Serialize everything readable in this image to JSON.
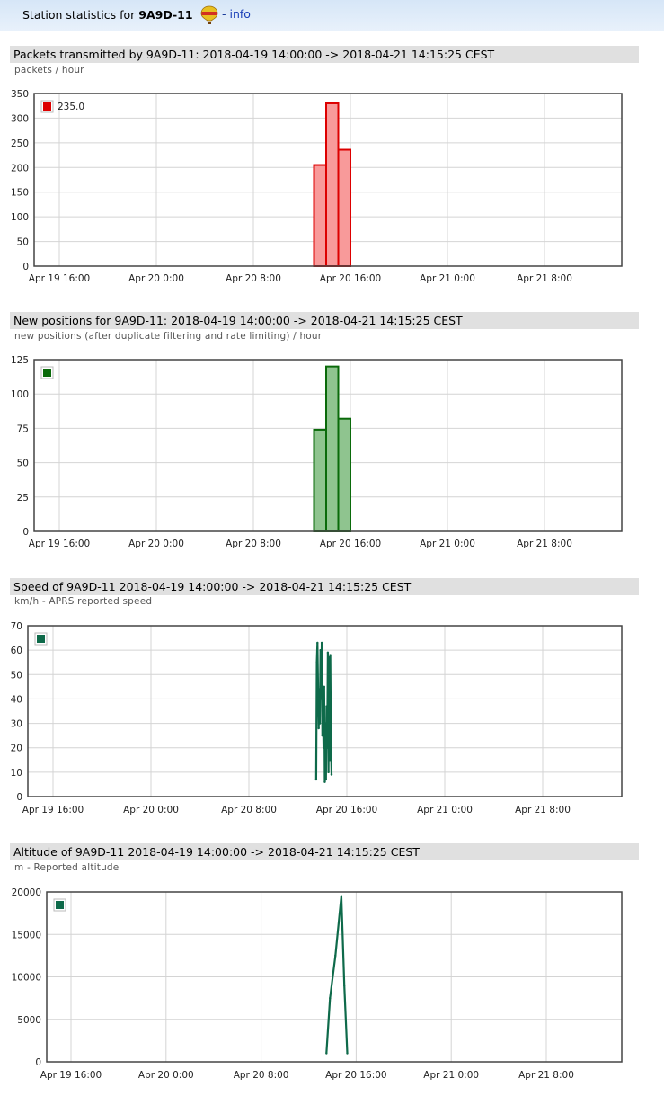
{
  "header": {
    "prefix": "Station statistics for",
    "callsign": "9A9D-11",
    "info_sep": "-",
    "info_label": "info"
  },
  "x_ticks": [
    "Apr 19 16:00",
    "Apr 20 0:00",
    "Apr 20 8:00",
    "Apr 20 16:00",
    "Apr 21 0:00",
    "Apr 21 8:00"
  ],
  "chart_data": [
    {
      "type": "bar",
      "title": "Packets transmitted by 9A9D-11: 2018-04-19 14:00:00 -> 2018-04-21 14:15:25 CEST",
      "ylabel": "packets / hour",
      "legend": "235.0",
      "legend_placement": "top-left",
      "color": "#dd0000",
      "fill": "#f89a9a",
      "x_range": [
        "2018-04-19 14:00",
        "2018-04-21 14:15"
      ],
      "y_ticks": [
        0,
        50,
        100,
        150,
        200,
        250,
        300,
        350
      ],
      "ylim": [
        0,
        350
      ],
      "grid": true,
      "bars": [
        {
          "x": "2018-04-20 13:00",
          "y": 205
        },
        {
          "x": "2018-04-20 14:00",
          "y": 330
        },
        {
          "x": "2018-04-20 15:00",
          "y": 236
        }
      ]
    },
    {
      "type": "bar",
      "title": "New positions for 9A9D-11: 2018-04-19 14:00:00 -> 2018-04-21 14:15:25 CEST",
      "ylabel": "new positions (after duplicate filtering and rate limiting) / hour",
      "legend": "",
      "legend_placement": "top-left",
      "color": "#0a6a0a",
      "fill": "#8fc48f",
      "x_range": [
        "2018-04-19 14:00",
        "2018-04-21 14:15"
      ],
      "y_ticks": [
        0,
        25,
        50,
        75,
        100,
        125
      ],
      "ylim": [
        0,
        125
      ],
      "grid": true,
      "bars": [
        {
          "x": "2018-04-20 13:00",
          "y": 74
        },
        {
          "x": "2018-04-20 14:00",
          "y": 120
        },
        {
          "x": "2018-04-20 15:00",
          "y": 82
        }
      ]
    },
    {
      "type": "line",
      "title": "Speed of 9A9D-11 2018-04-19 14:00:00 -> 2018-04-21 14:15:25 CEST",
      "ylabel": "km/h - APRS reported speed",
      "legend": "",
      "legend_placement": "top-left",
      "color": "#0e6a4a",
      "x_range": [
        "2018-04-19 14:00",
        "2018-04-21 14:15"
      ],
      "y_ticks": [
        0,
        10,
        20,
        30,
        40,
        50,
        60,
        70
      ],
      "ylim": [
        0,
        70
      ],
      "grid": true,
      "points": [
        {
          "x": "2018-04-20 13:30",
          "y": 7
        },
        {
          "x": "2018-04-20 13:33",
          "y": 55
        },
        {
          "x": "2018-04-20 13:36",
          "y": 63
        },
        {
          "x": "2018-04-20 13:39",
          "y": 45
        },
        {
          "x": "2018-04-20 13:42",
          "y": 28
        },
        {
          "x": "2018-04-20 13:45",
          "y": 44
        },
        {
          "x": "2018-04-20 13:48",
          "y": 30
        },
        {
          "x": "2018-04-20 13:51",
          "y": 60
        },
        {
          "x": "2018-04-20 13:54",
          "y": 40
        },
        {
          "x": "2018-04-20 13:57",
          "y": 63
        },
        {
          "x": "2018-04-20 14:00",
          "y": 25
        },
        {
          "x": "2018-04-20 14:03",
          "y": 35
        },
        {
          "x": "2018-04-20 14:06",
          "y": 20
        },
        {
          "x": "2018-04-20 14:09",
          "y": 45
        },
        {
          "x": "2018-04-20 14:12",
          "y": 6
        },
        {
          "x": "2018-04-20 14:15",
          "y": 30
        },
        {
          "x": "2018-04-20 14:18",
          "y": 7
        },
        {
          "x": "2018-04-20 14:21",
          "y": 37
        },
        {
          "x": "2018-04-20 14:24",
          "y": 20
        },
        {
          "x": "2018-04-20 14:27",
          "y": 59
        },
        {
          "x": "2018-04-20 14:30",
          "y": 10
        },
        {
          "x": "2018-04-20 14:33",
          "y": 57
        },
        {
          "x": "2018-04-20 14:36",
          "y": 15
        },
        {
          "x": "2018-04-20 14:39",
          "y": 58
        },
        {
          "x": "2018-04-20 14:42",
          "y": 22
        },
        {
          "x": "2018-04-20 14:45",
          "y": 9
        }
      ]
    },
    {
      "type": "line",
      "title": "Altitude of 9A9D-11 2018-04-19 14:00:00 -> 2018-04-21 14:15:25 CEST",
      "ylabel": "m - Reported altitude",
      "legend": "",
      "legend_placement": "top-left",
      "color": "#0e6a4a",
      "x_range": [
        "2018-04-19 14:00",
        "2018-04-21 14:15"
      ],
      "y_ticks": [
        0,
        5000,
        10000,
        15000,
        20000
      ],
      "ylim": [
        0,
        20000
      ],
      "grid": true,
      "points": [
        {
          "x": "2018-04-20 13:30",
          "y": 1000
        },
        {
          "x": "2018-04-20 13:48",
          "y": 7500
        },
        {
          "x": "2018-04-20 14:15",
          "y": 12500
        },
        {
          "x": "2018-04-20 14:45",
          "y": 19500
        },
        {
          "x": "2018-04-20 15:00",
          "y": 9000
        },
        {
          "x": "2018-04-20 15:15",
          "y": 1000
        }
      ]
    }
  ]
}
